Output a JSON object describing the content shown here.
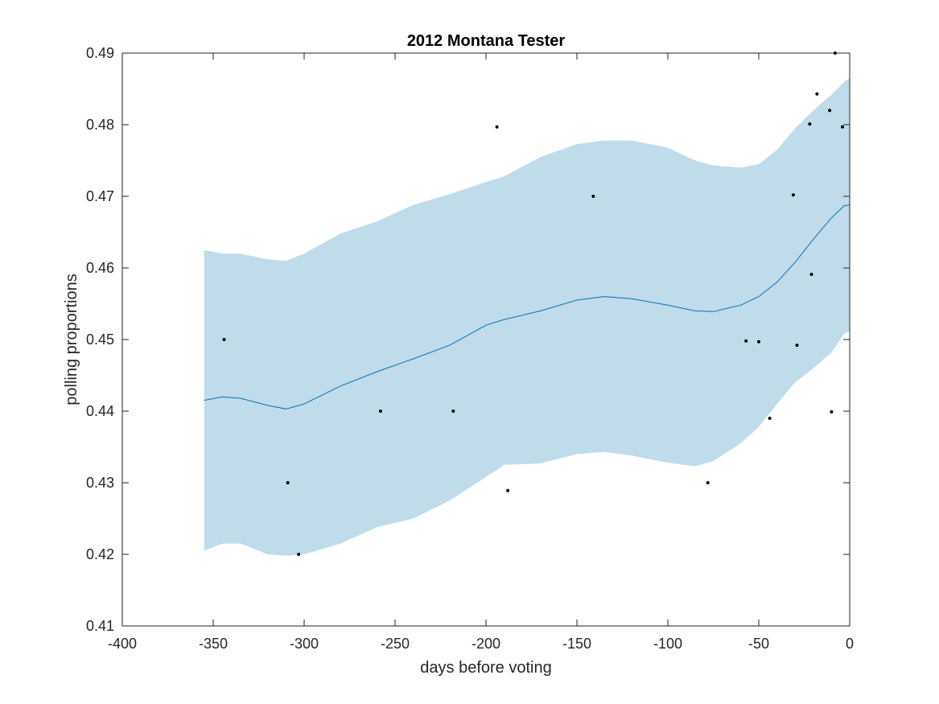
{
  "chart_data": {
    "type": "scatter",
    "title": "2012 Montana Tester",
    "xlabel": "days before voting",
    "ylabel": "polling proportions",
    "xlim": [
      -400,
      0
    ],
    "ylim": [
      0.41,
      0.49
    ],
    "xticks": [
      -400,
      -350,
      -300,
      -250,
      -200,
      -150,
      -100,
      -50,
      0
    ],
    "xtick_labels": [
      "-400",
      "-350",
      "-300",
      "-250",
      "-200",
      "-150",
      "-100",
      "-50",
      "0"
    ],
    "yticks": [
      0.41,
      0.42,
      0.43,
      0.44,
      0.45,
      0.46,
      0.47,
      0.48,
      0.49
    ],
    "ytick_labels": [
      "0.41",
      "0.42",
      "0.43",
      "0.44",
      "0.45",
      "0.46",
      "0.47",
      "0.48",
      "0.49"
    ],
    "grid": false,
    "colors": {
      "band": "#c0dcea",
      "mean_line": "#0072bd",
      "points": "#000000",
      "axes": "#262626"
    },
    "points": [
      {
        "x": -344,
        "y": 0.45
      },
      {
        "x": -309,
        "y": 0.43
      },
      {
        "x": -303,
        "y": 0.42
      },
      {
        "x": -258,
        "y": 0.44
      },
      {
        "x": -218,
        "y": 0.44
      },
      {
        "x": -194,
        "y": 0.4797
      },
      {
        "x": -188,
        "y": 0.4289
      },
      {
        "x": -141,
        "y": 0.47
      },
      {
        "x": -78,
        "y": 0.43
      },
      {
        "x": -57,
        "y": 0.4498
      },
      {
        "x": -50,
        "y": 0.4497
      },
      {
        "x": -44,
        "y": 0.439
      },
      {
        "x": -31,
        "y": 0.4702
      },
      {
        "x": -29,
        "y": 0.4492
      },
      {
        "x": -22,
        "y": 0.4801
      },
      {
        "x": -21,
        "y": 0.4591
      },
      {
        "x": -18,
        "y": 0.4843
      },
      {
        "x": -11,
        "y": 0.482
      },
      {
        "x": -10,
        "y": 0.4399
      },
      {
        "x": -8,
        "y": 0.49
      },
      {
        "x": -4,
        "y": 0.4797
      }
    ],
    "series": [
      {
        "type": "line",
        "x": [
          -355,
          -345,
          -335,
          -320,
          -310,
          -300,
          -280,
          -260,
          -240,
          -220,
          -200,
          -190,
          -170,
          -150,
          -135,
          -120,
          -100,
          -85,
          -75,
          -60,
          -50,
          -40,
          -30,
          -20,
          -10,
          -3,
          0
        ],
        "y": [
          0.4415,
          0.442,
          0.4418,
          0.4408,
          0.4403,
          0.441,
          0.4435,
          0.4455,
          0.4473,
          0.4492,
          0.452,
          0.4528,
          0.454,
          0.4555,
          0.456,
          0.4557,
          0.4548,
          0.454,
          0.4539,
          0.4548,
          0.456,
          0.458,
          0.4608,
          0.464,
          0.467,
          0.4687,
          0.4688
        ]
      },
      {
        "type": "area",
        "x": [
          -355,
          -345,
          -335,
          -320,
          -310,
          -300,
          -280,
          -260,
          -240,
          -220,
          -200,
          -190,
          -170,
          -150,
          -135,
          -120,
          -100,
          -85,
          -75,
          -60,
          -50,
          -40,
          -30,
          -20,
          -10,
          -3,
          0
        ],
        "upper": [
          0.4625,
          0.462,
          0.462,
          0.4612,
          0.461,
          0.462,
          0.4648,
          0.4665,
          0.4688,
          0.4703,
          0.472,
          0.4728,
          0.4755,
          0.4773,
          0.4778,
          0.4778,
          0.4768,
          0.475,
          0.4743,
          0.474,
          0.4745,
          0.4765,
          0.4795,
          0.482,
          0.4842,
          0.486,
          0.4865
        ],
        "lower": [
          0.4205,
          0.4215,
          0.4215,
          0.42,
          0.4198,
          0.42,
          0.4215,
          0.4238,
          0.425,
          0.4275,
          0.4308,
          0.4325,
          0.4327,
          0.434,
          0.4343,
          0.4338,
          0.4328,
          0.4323,
          0.433,
          0.4355,
          0.4378,
          0.441,
          0.444,
          0.446,
          0.4482,
          0.4508,
          0.4512
        ]
      }
    ]
  }
}
